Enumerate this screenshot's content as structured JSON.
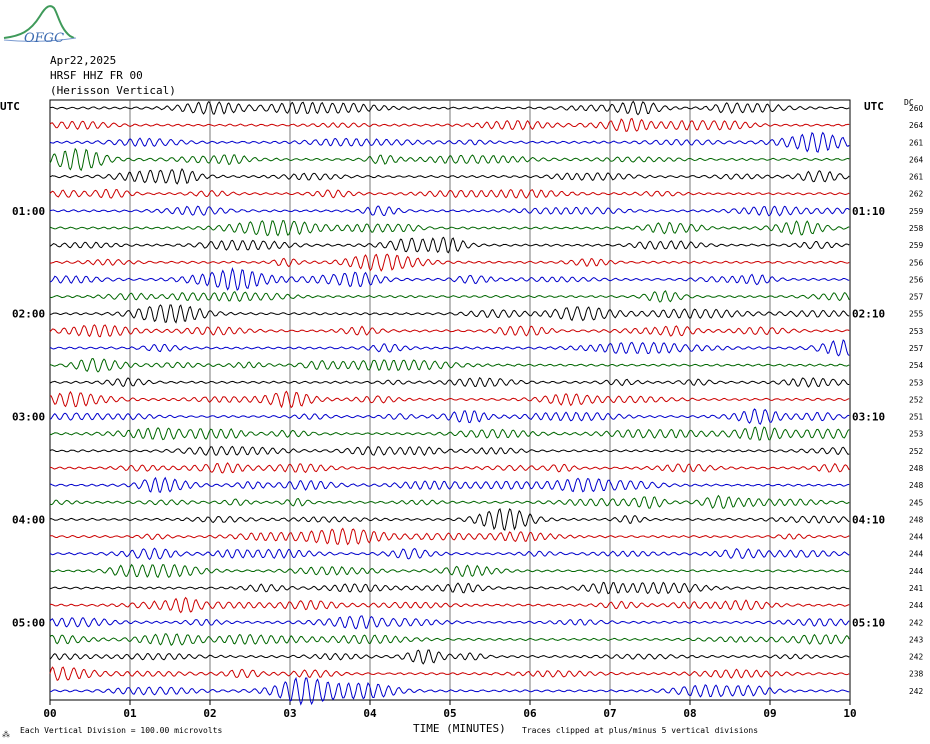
{
  "header": {
    "logo_text": "OFGC",
    "date": "Apr22,2025",
    "station": "HRSF HHZ FR 00",
    "location": "(Herisson Vertical)"
  },
  "left_axis_label": "UTC",
  "right_axis_label": "UTC",
  "dc_label": "DC",
  "xaxis_title": "TIME (MINUTES)",
  "footer": {
    "scale_note": "Each Vertical Division =  100.00 microvolts",
    "clip_note": "Traces clipped at plus/minus 5 vertical divisions"
  },
  "colors": [
    "#000000",
    "#cc0000",
    "#0000cc",
    "#006600"
  ],
  "chart_data": {
    "type": "line",
    "xlim": [
      0,
      10
    ],
    "x_ticks": [
      "00",
      "01",
      "02",
      "03",
      "04",
      "05",
      "06",
      "07",
      "08",
      "09",
      "10"
    ],
    "left_time_labels": [
      "01:00",
      "02:00",
      "03:00",
      "04:00",
      "05:00"
    ],
    "right_time_labels": [
      "01:10",
      "02:10",
      "03:10",
      "04:10",
      "05:10"
    ],
    "dc_offsets": [
      260,
      264,
      261,
      264,
      261,
      262,
      259,
      258,
      259,
      256,
      256,
      257,
      255,
      253,
      257,
      254,
      253,
      252,
      251,
      253,
      252,
      248,
      248,
      245,
      248,
      244,
      244,
      244,
      241,
      244,
      242,
      243,
      242,
      238,
      242
    ]
  }
}
